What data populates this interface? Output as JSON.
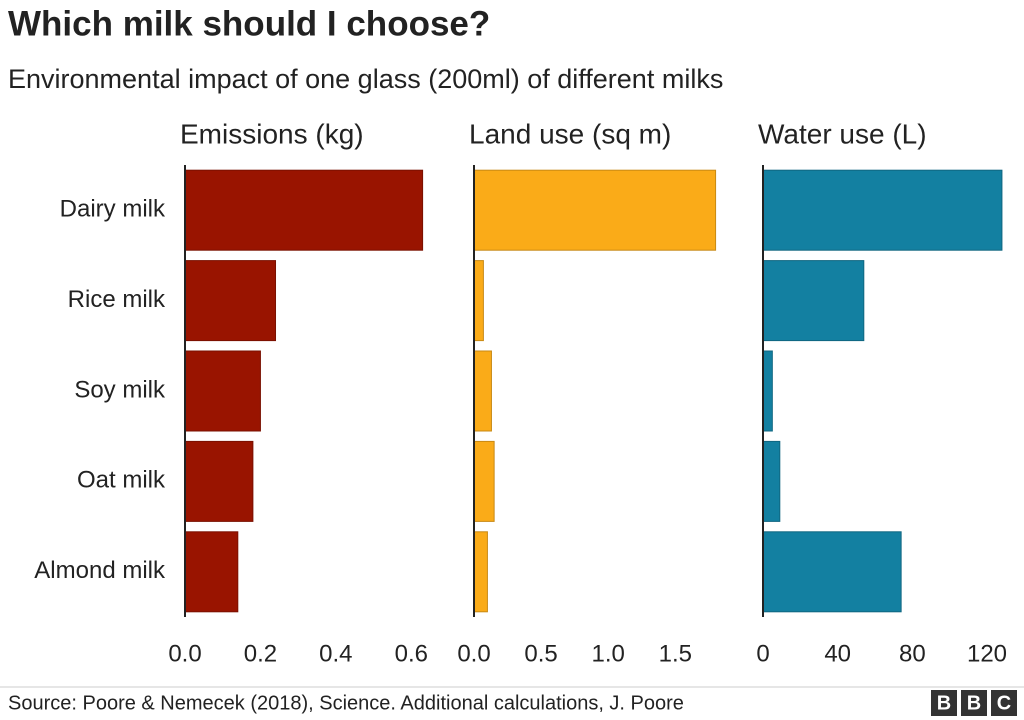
{
  "title": "Which milk should I choose?",
  "subtitle": "Environmental impact of one glass (200ml) of different milks",
  "source": "Source: Poore & Nemecek (2018), Science. Additional calculations, J. Poore",
  "logo": [
    "B",
    "B",
    "C"
  ],
  "chart_data": [
    {
      "type": "bar",
      "orientation": "horizontal",
      "title": "Emissions (kg)",
      "categories": [
        "Dairy milk",
        "Rice milk",
        "Soy milk",
        "Oat milk",
        "Almond milk"
      ],
      "values": [
        0.63,
        0.24,
        0.2,
        0.18,
        0.14
      ],
      "color": "#991400",
      "xlim": [
        0,
        0.7
      ],
      "xticks": [
        {
          "value": 0,
          "label": "0.0"
        },
        0.2,
        0.4,
        0.6
      ]
    },
    {
      "type": "bar",
      "orientation": "horizontal",
      "title": "Land use (sq m)",
      "categories": [
        null,
        null,
        null,
        null,
        null
      ],
      "values": [
        1.8,
        0.07,
        0.13,
        0.15,
        0.1
      ],
      "color": "#faab18",
      "xlim": [
        0,
        1.9
      ],
      "xticks": [
        {
          "value": 0,
          "label": "0.0"
        },
        0.5,
        {
          "value": 1,
          "label": "1.0"
        },
        1.5
      ]
    },
    {
      "type": "bar",
      "orientation": "horizontal",
      "title": "Water use (L)",
      "categories": [
        null,
        null,
        null,
        null,
        null
      ],
      "values": [
        128,
        54,
        5,
        9,
        74
      ],
      "color": "#1380a1",
      "xlim": [
        0,
        135
      ],
      "xticks": [
        0,
        40,
        80,
        120
      ]
    }
  ]
}
